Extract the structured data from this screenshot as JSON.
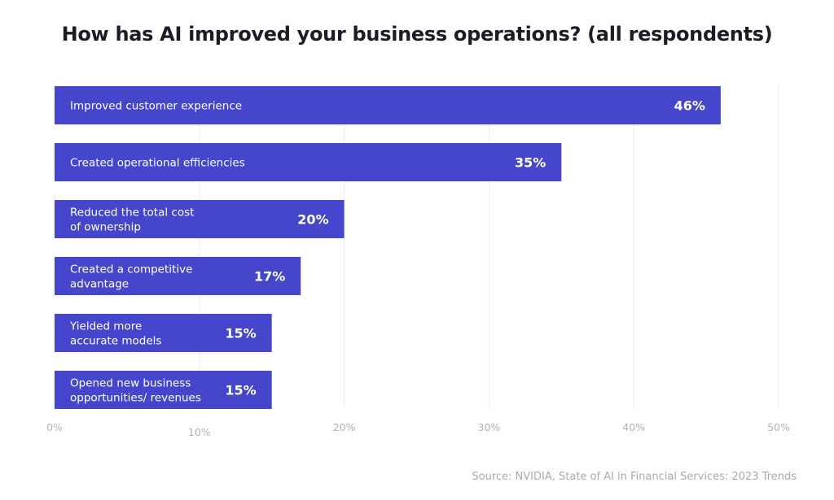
{
  "chart_data": {
    "type": "bar",
    "orientation": "horizontal",
    "title": "How has AI improved your business operations? (all respondents)",
    "categories": [
      [
        "Improved customer experience"
      ],
      [
        "Created operational efficiencies"
      ],
      [
        "Reduced the total cost",
        "of ownership"
      ],
      [
        "Created a competitive",
        "advantage"
      ],
      [
        "Yielded more",
        "accurate models"
      ],
      [
        "Opened new business",
        "opportunities/ revenues"
      ]
    ],
    "values": [
      46,
      35,
      20,
      17,
      15,
      15
    ],
    "value_labels": [
      "46%",
      "35%",
      "20%",
      "17%",
      "15%",
      "15%"
    ],
    "xlim": [
      0,
      50
    ],
    "ticks": [
      0,
      10,
      20,
      30,
      40,
      50
    ],
    "tick_labels": [
      "0%",
      "10%",
      "20%",
      "30%",
      "40%",
      "50%"
    ],
    "grid": "vertical",
    "bar_color": "#4646cc",
    "source": "Source: NVIDIA, State of AI in Financial Services: 2023 Trends"
  }
}
